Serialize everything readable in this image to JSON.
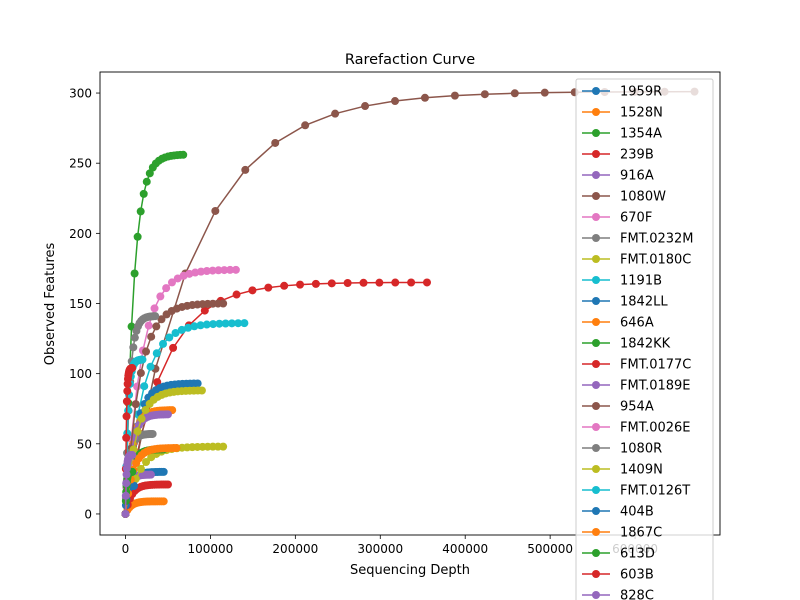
{
  "chart_data": {
    "type": "line",
    "title": "Rarefaction Curve",
    "xlabel": "Sequencing Depth",
    "ylabel": "Observed Features",
    "xlim": [
      -30000,
      700000
    ],
    "ylim": [
      -15,
      315
    ],
    "xticks": [
      0,
      100000,
      200000,
      300000,
      400000,
      500000,
      600000
    ],
    "xtick_labels": [
      "0",
      "100000",
      "200000",
      "300000",
      "400000",
      "500000",
      "600000"
    ],
    "yticks": [
      0,
      50,
      100,
      150,
      200,
      250,
      300
    ],
    "ytick_labels": [
      "0",
      "50",
      "100",
      "150",
      "200",
      "250",
      "300"
    ],
    "grid": false,
    "legend_position": "upper-right",
    "series": [
      {
        "name": "1959R",
        "color": "#1f77b4",
        "max_depth": 45000,
        "max_features": 30
      },
      {
        "name": "1528N",
        "color": "#ff7f0e",
        "max_depth": 45000,
        "max_features": 9
      },
      {
        "name": "1354A",
        "color": "#2ca02c",
        "max_depth": 68000,
        "max_features": 256
      },
      {
        "name": "239B",
        "color": "#d62728",
        "max_depth": 355000,
        "max_features": 165
      },
      {
        "name": "916A",
        "color": "#9467bd",
        "max_depth": 30000,
        "max_features": 28
      },
      {
        "name": "1080W",
        "color": "#8c564b",
        "max_depth": 670000,
        "max_features": 301
      },
      {
        "name": "670F",
        "color": "#e377c2",
        "max_depth": 130000,
        "max_features": 174
      },
      {
        "name": "FMT.0232M",
        "color": "#7f7f7f",
        "max_depth": 32000,
        "max_features": 57
      },
      {
        "name": "FMT.0180C",
        "color": "#bcbd22",
        "max_depth": 115000,
        "max_features": 48
      },
      {
        "name": "1191B",
        "color": "#17becf",
        "max_depth": 140000,
        "max_features": 136
      },
      {
        "name": "1842LL",
        "color": "#1f77b4",
        "max_depth": 85000,
        "max_features": 93
      },
      {
        "name": "646A",
        "color": "#ff7f0e",
        "max_depth": 55000,
        "max_features": 74
      },
      {
        "name": "1842KK",
        "color": "#2ca02c",
        "max_depth": 45000,
        "max_features": 46
      },
      {
        "name": "FMT.0177C",
        "color": "#d62728",
        "max_depth": 50000,
        "max_features": 21
      },
      {
        "name": "FMT.0189E",
        "color": "#9467bd",
        "max_depth": 50000,
        "max_features": 71
      },
      {
        "name": "954A",
        "color": "#8c564b",
        "max_depth": 115000,
        "max_features": 150
      },
      {
        "name": "FMT.0026E",
        "color": "#e377c2",
        "max_depth": 10000,
        "max_features": 36
      },
      {
        "name": "1080R",
        "color": "#7f7f7f",
        "max_depth": 35000,
        "max_features": 141
      },
      {
        "name": "1409N",
        "color": "#bcbd22",
        "max_depth": 90000,
        "max_features": 88
      },
      {
        "name": "FMT.0126T",
        "color": "#17becf",
        "max_depth": 20000,
        "max_features": 110
      },
      {
        "name": "404B",
        "color": "#1f77b4",
        "max_depth": 10000,
        "max_features": 20
      },
      {
        "name": "1867C",
        "color": "#ff7f0e",
        "max_depth": 60000,
        "max_features": 47
      },
      {
        "name": "613D",
        "color": "#2ca02c",
        "max_depth": 8000,
        "max_features": 30
      },
      {
        "name": "603B",
        "color": "#d62728",
        "max_depth": 8000,
        "max_features": 104
      },
      {
        "name": "828C",
        "color": "#9467bd",
        "max_depth": 8000,
        "max_features": 42
      }
    ]
  }
}
